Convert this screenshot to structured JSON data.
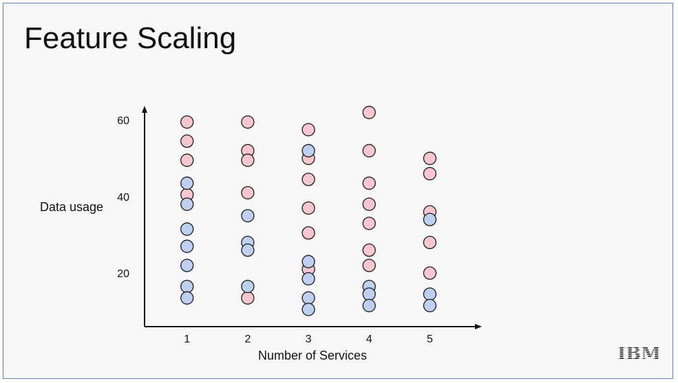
{
  "slide": {
    "title": "Feature Scaling",
    "logo_text": "IBM"
  },
  "colors": {
    "frame_border": "#5b86c5",
    "pink": "#f7c6d0",
    "blue": "#bdd0ef",
    "outline": "#1a1a1a"
  },
  "chart_data": {
    "type": "scatter",
    "xlabel": "Number of Services",
    "ylabel": "Data usage",
    "xlim": [
      0.3,
      5.8
    ],
    "ylim": [
      6.0,
      63.0
    ],
    "x_ticks": [
      "1",
      "2",
      "3",
      "4",
      "5"
    ],
    "y_ticks": [
      "20",
      "40",
      "60"
    ],
    "grid": false,
    "series": [
      {
        "color": "pink",
        "points": [
          [
            1,
            59.5
          ],
          [
            1,
            54.5
          ],
          [
            1,
            49.5
          ],
          [
            1,
            40.5
          ],
          [
            2,
            59.5
          ],
          [
            2,
            52.0
          ],
          [
            2,
            49.5
          ],
          [
            2,
            41.0
          ],
          [
            2,
            13.5
          ],
          [
            3,
            57.5
          ],
          [
            3,
            50.0
          ],
          [
            3,
            44.5
          ],
          [
            3,
            37.0
          ],
          [
            3,
            30.5
          ],
          [
            3,
            21.0
          ],
          [
            4,
            62.0
          ],
          [
            4,
            52.0
          ],
          [
            4,
            43.5
          ],
          [
            4,
            38.0
          ],
          [
            4,
            33.0
          ],
          [
            4,
            26.0
          ],
          [
            4,
            22.0
          ],
          [
            5,
            50.0
          ],
          [
            5,
            46.0
          ],
          [
            5,
            36.0
          ],
          [
            5,
            28.0
          ],
          [
            5,
            20.0
          ]
        ]
      },
      {
        "color": "blue",
        "points": [
          [
            1,
            43.5
          ],
          [
            1,
            38.0
          ],
          [
            1,
            31.5
          ],
          [
            1,
            27.0
          ],
          [
            1,
            22.0
          ],
          [
            1,
            16.5
          ],
          [
            1,
            13.5
          ],
          [
            2,
            35.0
          ],
          [
            2,
            28.0
          ],
          [
            2,
            26.0
          ],
          [
            2,
            16.5
          ],
          [
            3,
            52.0
          ],
          [
            3,
            23.0
          ],
          [
            3,
            18.5
          ],
          [
            3,
            13.5
          ],
          [
            3,
            10.5
          ],
          [
            4,
            16.5
          ],
          [
            4,
            14.5
          ],
          [
            4,
            11.5
          ],
          [
            5,
            34.0
          ],
          [
            5,
            14.5
          ],
          [
            5,
            11.5
          ]
        ]
      }
    ]
  }
}
